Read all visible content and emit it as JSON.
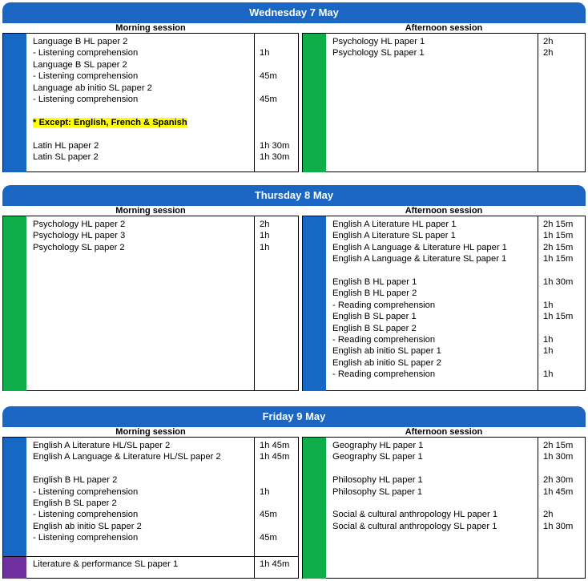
{
  "session_labels": {
    "morning": "Morning session",
    "afternoon": "Afternoon session"
  },
  "days": [
    {
      "title": "Wednesday 7 May",
      "morning": {
        "blocks": [
          {
            "color": "blue",
            "entries": [
              {
                "text": "Language B HL paper 2",
                "dur": ""
              },
              {
                "text": "- Listening comprehension",
                "dur": "1h"
              },
              {
                "text": "Language B SL paper 2",
                "dur": ""
              },
              {
                "text": "- Listening comprehension",
                "dur": "45m"
              },
              {
                "text": "Language ab initio SL paper 2",
                "dur": ""
              },
              {
                "text": "- Listening comprehension",
                "dur": "45m"
              },
              {
                "text": "",
                "dur": ""
              },
              {
                "text": "* Except: English, French & Spanish",
                "dur": "",
                "highlight": true
              },
              {
                "text": "",
                "dur": ""
              },
              {
                "text": "Latin HL paper 2",
                "dur": "1h 30m"
              },
              {
                "text": "Latin SL paper 2",
                "dur": "1h 30m"
              }
            ]
          }
        ]
      },
      "afternoon": {
        "blocks": [
          {
            "color": "green",
            "entries": [
              {
                "text": "Psychology HL paper 1",
                "dur": "2h"
              },
              {
                "text": "Psychology SL paper 1",
                "dur": "2h"
              }
            ]
          }
        ]
      }
    },
    {
      "title": "Thursday 8 May",
      "morning": {
        "blocks": [
          {
            "color": "green",
            "entries": [
              {
                "text": "Psychology HL paper 2",
                "dur": "2h"
              },
              {
                "text": "Psychology HL paper 3",
                "dur": "1h"
              },
              {
                "text": "Psychology SL paper 2",
                "dur": "1h"
              }
            ]
          }
        ]
      },
      "afternoon": {
        "blocks": [
          {
            "color": "blue",
            "entries": [
              {
                "text": "English A Literature HL paper 1",
                "dur": "2h 15m"
              },
              {
                "text": "English A Literature SL paper 1",
                "dur": "1h 15m"
              },
              {
                "text": "English A Language & Literature HL paper 1",
                "dur": "2h 15m"
              },
              {
                "text": "English A Language & Literature SL paper 1",
                "dur": "1h 15m"
              },
              {
                "text": "",
                "dur": ""
              },
              {
                "text": "English B HL paper 1",
                "dur": "1h 30m"
              },
              {
                "text": "English B HL paper 2",
                "dur": ""
              },
              {
                "text": "- Reading comprehension",
                "dur": "1h"
              },
              {
                "text": "English B SL paper 1",
                "dur": "1h 15m"
              },
              {
                "text": "English B SL paper 2",
                "dur": ""
              },
              {
                "text": "- Reading comprehension",
                "dur": "1h"
              },
              {
                "text": "English ab initio SL paper 1",
                "dur": "1h"
              },
              {
                "text": "English ab initio SL paper 2",
                "dur": ""
              },
              {
                "text": "- Reading comprehension",
                "dur": "1h"
              }
            ]
          }
        ]
      }
    },
    {
      "title": "Friday 9 May",
      "morning": {
        "blocks": [
          {
            "color": "blue",
            "entries": [
              {
                "text": "English A Literature HL/SL paper 2",
                "dur": "1h 45m"
              },
              {
                "text": "English A Language & Literature HL/SL paper 2",
                "dur": "1h 45m"
              },
              {
                "text": "",
                "dur": ""
              },
              {
                "text": "English B HL paper 2",
                "dur": ""
              },
              {
                "text": "- Listening comprehension",
                "dur": "1h"
              },
              {
                "text": "English B SL paper 2",
                "dur": ""
              },
              {
                "text": "- Listening comprehension",
                "dur": "45m"
              },
              {
                "text": "English ab initio SL paper 2",
                "dur": ""
              },
              {
                "text": "- Listening comprehension",
                "dur": "45m"
              },
              {
                "text": "",
                "dur": ""
              }
            ]
          },
          {
            "color": "purple",
            "entries": [
              {
                "text": "Literature & performance SL paper 1",
                "dur": "1h 45m"
              }
            ]
          }
        ]
      },
      "afternoon": {
        "blocks": [
          {
            "color": "green",
            "entries": [
              {
                "text": "Geography HL paper 1",
                "dur": "2h 15m"
              },
              {
                "text": "Geography SL paper 1",
                "dur": "1h 30m"
              },
              {
                "text": "",
                "dur": ""
              },
              {
                "text": "Philosophy HL paper 1",
                "dur": "2h 30m"
              },
              {
                "text": "Philosophy SL paper 1",
                "dur": "1h 45m"
              },
              {
                "text": "",
                "dur": ""
              },
              {
                "text": "Social & cultural anthropology HL paper 1",
                "dur": "2h"
              },
              {
                "text": "Social & cultural anthropology SL paper 1",
                "dur": "1h 30m"
              }
            ]
          }
        ]
      }
    }
  ]
}
